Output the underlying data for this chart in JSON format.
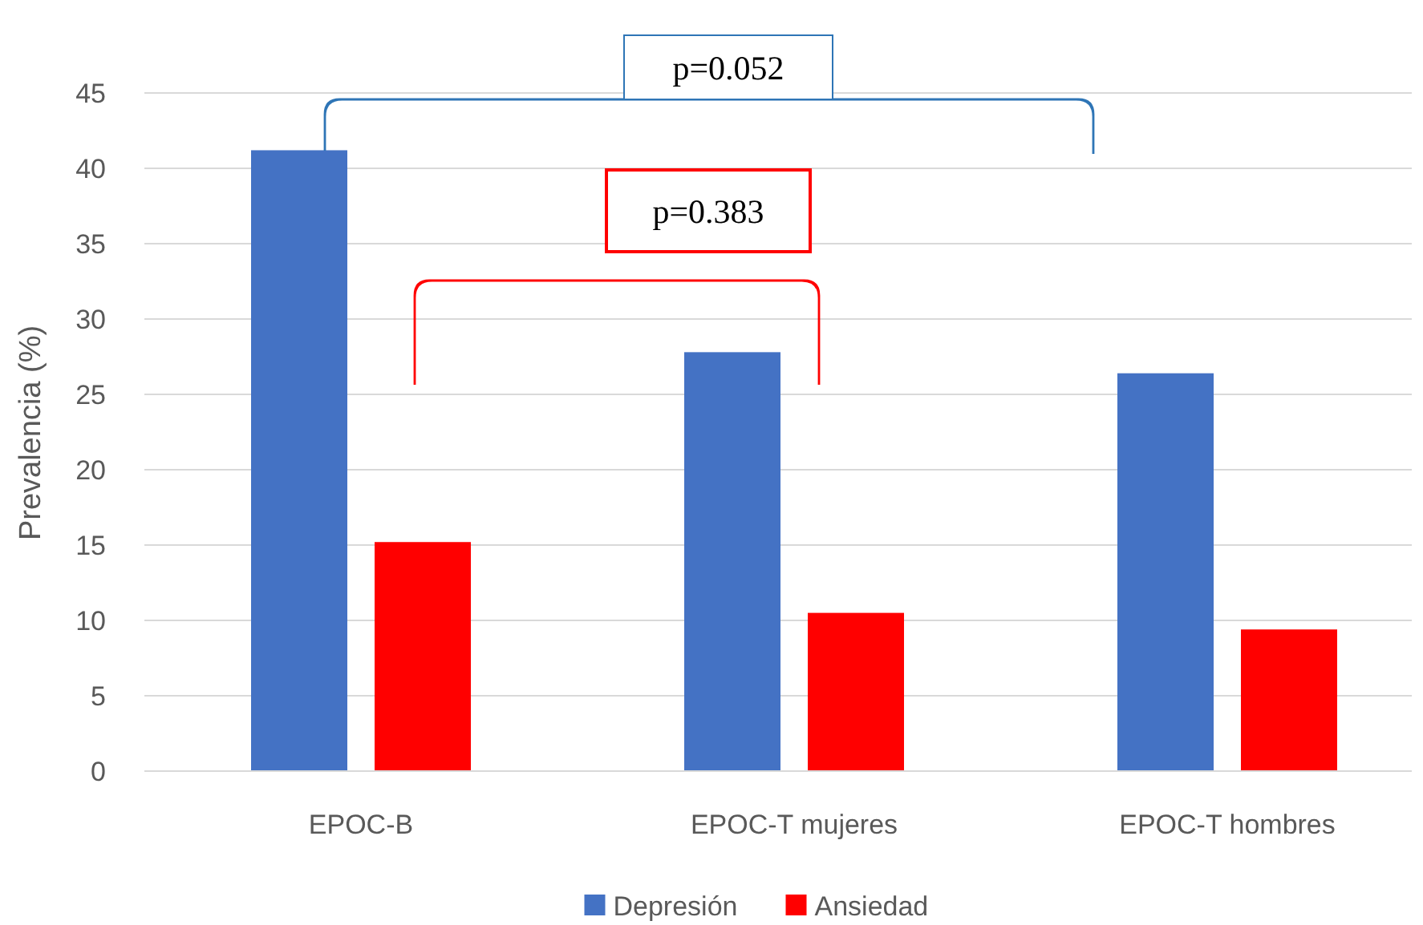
{
  "chart_data": {
    "type": "bar",
    "ylabel": "Prevalencia (%)",
    "categories": [
      "EPOC-B",
      "EPOC-T mujeres",
      "EPOC-T hombres"
    ],
    "series": [
      {
        "name": "Depresión",
        "color": "#4472c4",
        "values": [
          41.2,
          27.8,
          26.4
        ]
      },
      {
        "name": "Ansiedad",
        "color": "#ff0000",
        "values": [
          15.2,
          10.5,
          9.4
        ]
      }
    ],
    "ylim": [
      0,
      45
    ],
    "yticks": [
      0,
      5,
      10,
      15,
      20,
      25,
      30,
      35,
      40,
      45
    ],
    "grid": "y",
    "legend": "bottom",
    "annotations": [
      "p=0.052",
      "p=0.383"
    ]
  }
}
